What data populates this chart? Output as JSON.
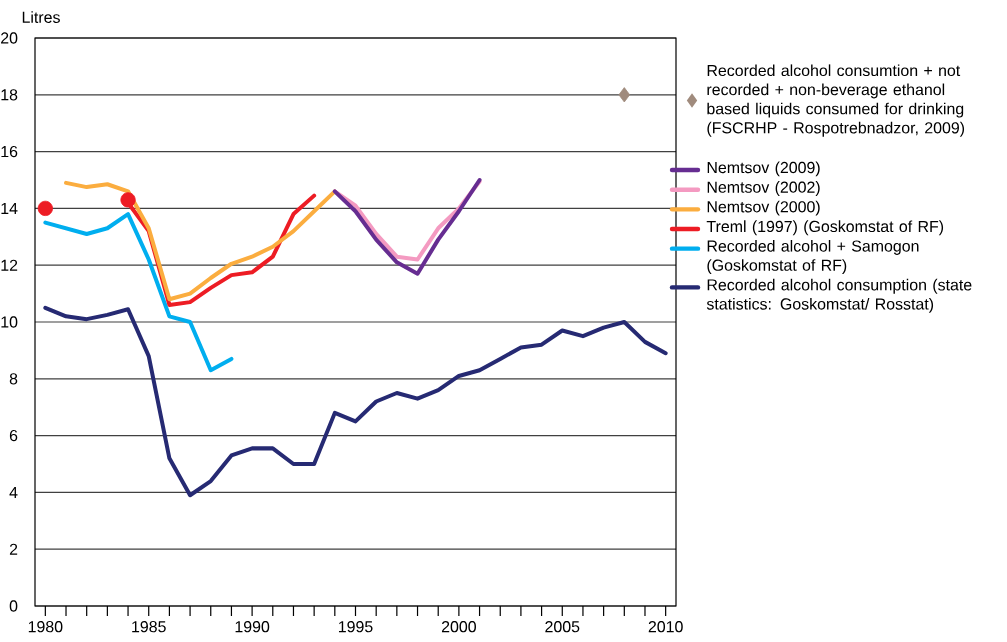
{
  "chart_data": {
    "type": "line",
    "ylabel": "Litres",
    "xlim": [
      1979.5,
      2010.5
    ],
    "ylim": [
      0,
      20
    ],
    "xticks": [
      1980,
      {
        "value": 1981,
        "label": null
      },
      {
        "value": 1982,
        "label": null
      },
      {
        "value": 1983,
        "label": null
      },
      {
        "value": 1984,
        "label": null
      },
      1985,
      {
        "value": 1986,
        "label": null
      },
      {
        "value": 1987,
        "label": null
      },
      {
        "value": 1988,
        "label": null
      },
      {
        "value": 1989,
        "label": null
      },
      1990,
      {
        "value": 1991,
        "label": null
      },
      {
        "value": 1992,
        "label": null
      },
      {
        "value": 1993,
        "label": null
      },
      {
        "value": 1994,
        "label": null
      },
      1995,
      {
        "value": 1996,
        "label": null
      },
      {
        "value": 1997,
        "label": null
      },
      {
        "value": 1998,
        "label": null
      },
      {
        "value": 1999,
        "label": null
      },
      2000,
      {
        "value": 2001,
        "label": null
      },
      {
        "value": 2002,
        "label": null
      },
      {
        "value": 2003,
        "label": null
      },
      {
        "value": 2004,
        "label": null
      },
      2005,
      {
        "value": 2006,
        "label": null
      },
      {
        "value": 2007,
        "label": null
      },
      {
        "value": 2008,
        "label": null
      },
      {
        "value": 2009,
        "label": null
      },
      2010
    ],
    "yticks": [
      0,
      2,
      4,
      6,
      8,
      10,
      12,
      14,
      16,
      18,
      20
    ],
    "grid": "y",
    "legend": "right",
    "series": [
      {
        "name": "Recorded alcohol consumtion + not recorded + non-beverage ethanol based liquids consumed for drinking (FSCRHP - Rospotrebnadzor, 2009)",
        "type": "scatter",
        "marker": "diamond",
        "color": "#a08b7d",
        "x": [
          2008
        ],
        "values": [
          18
        ]
      },
      {
        "name": "Nemtsov (2009)",
        "color": "#662d91",
        "x": [
          1994,
          1995,
          1996,
          1997,
          1998,
          1999,
          2000,
          2001
        ],
        "values": [
          14.6,
          13.9,
          12.9,
          12.1,
          11.7,
          12.9,
          13.9,
          15.0
        ]
      },
      {
        "name": "Nemtsov (2002)",
        "color": "#f49ac1",
        "x": [
          1994,
          1995,
          1996,
          1997,
          1998,
          1999,
          2000,
          2001
        ],
        "values": [
          14.6,
          14.1,
          13.1,
          12.3,
          12.2,
          13.3,
          14.0,
          14.95
        ]
      },
      {
        "name": "Nemtsov (2000)",
        "color": "#fbad3f",
        "x": [
          1981,
          1982,
          1983,
          1984,
          1985,
          1986,
          1987,
          1988,
          1989,
          1990,
          1991,
          1992,
          1993,
          1994
        ],
        "values": [
          14.9,
          14.75,
          14.85,
          14.6,
          13.3,
          10.8,
          11.0,
          11.55,
          12.05,
          12.3,
          12.65,
          13.2,
          13.9,
          14.6
        ]
      },
      {
        "name": "Treml (1997) (Goskomstat of RF)",
        "color": "#ed1c24",
        "x": [
          1984,
          1985,
          1986,
          1987,
          1988,
          1989,
          1990,
          1991,
          1992,
          1993
        ],
        "values": [
          14.2,
          13.2,
          10.6,
          10.7,
          11.2,
          11.65,
          11.75,
          12.3,
          13.8,
          14.45
        ]
      },
      {
        "type": "scatter",
        "marker": "circle",
        "color": "#ed1c24",
        "x": [
          1980,
          1984
        ],
        "values": [
          14.0,
          14.3
        ]
      },
      {
        "name": "Recorded alcohol + Samogon (Goskomstat of RF)",
        "color": "#00aeef",
        "x": [
          1980,
          1981,
          1982,
          1983,
          1984,
          1985,
          1986,
          1987,
          1988,
          1989
        ],
        "values": [
          13.5,
          13.3,
          13.1,
          13.3,
          13.8,
          12.2,
          10.2,
          10.0,
          8.3,
          8.7
        ]
      },
      {
        "name": "Recorded alcohol consumption (state statistics: Goskomstat/ Rosstat)",
        "color": "#262a73",
        "x": [
          1980,
          1981,
          1982,
          1983,
          1984,
          1985,
          1986,
          1987,
          1988,
          1989,
          1990,
          1991,
          1992,
          1993,
          1994,
          1995,
          1996,
          1997,
          1998,
          1999,
          2000,
          2001,
          2002,
          2003,
          2004,
          2005,
          2006,
          2007,
          2008,
          2009,
          2010
        ],
        "values": [
          10.5,
          10.2,
          10.1,
          10.25,
          10.45,
          8.8,
          5.2,
          3.9,
          4.4,
          5.3,
          5.55,
          5.55,
          5.0,
          5.0,
          6.8,
          6.5,
          7.2,
          7.5,
          7.3,
          7.6,
          8.1,
          8.3,
          8.7,
          9.1,
          9.2,
          9.7,
          9.5,
          9.8,
          10.0,
          9.3,
          8.9
        ]
      }
    ]
  }
}
